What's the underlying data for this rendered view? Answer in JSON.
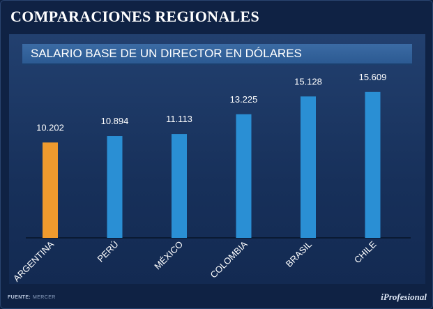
{
  "header": {
    "title": "COMPARACIONES REGIONALES"
  },
  "chart_title": "SALARIO BASE DE UN DIRECTOR EN DÓLARES",
  "colors": {
    "highlight": "#ef9a2e",
    "bar": "#2a8fd4",
    "axis": "#0a1a33"
  },
  "chart_data": {
    "type": "bar",
    "title": "SALARIO BASE DE UN DIRECTOR EN DÓLARES",
    "categories": [
      "ARGENTINA",
      "PERÚ",
      "MÉXICO",
      "COLOMBIA",
      "BRASIL",
      "CHILE"
    ],
    "values": [
      10202,
      10894,
      11113,
      13225,
      15128,
      15609
    ],
    "value_labels": [
      "10.202",
      "10.894",
      "11.113",
      "13.225",
      "15.128",
      "15.609"
    ],
    "highlight_index": 0,
    "xlabel": "",
    "ylabel": "",
    "grid": false
  },
  "footer": {
    "source_label": "FUENTE:",
    "source_value": "MERCER",
    "brand": "iProfesional"
  }
}
